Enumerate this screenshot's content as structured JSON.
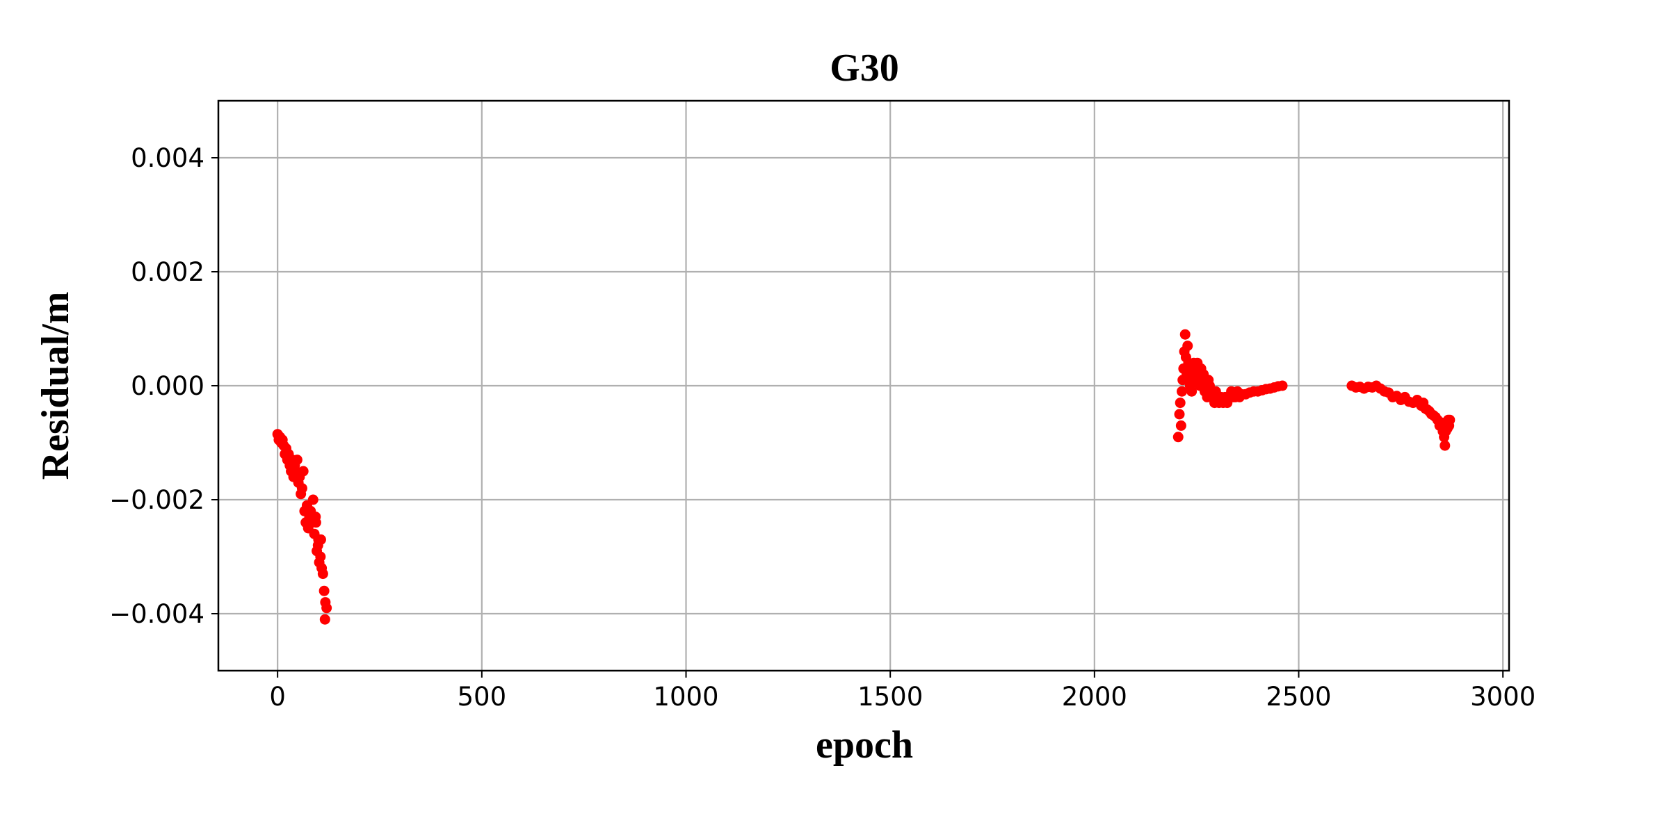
{
  "chart_data": {
    "type": "scatter",
    "title": "G30",
    "xlabel": "epoch",
    "ylabel": "Residual/m",
    "xlim": [
      -145,
      3015
    ],
    "ylim": [
      -0.005,
      0.005
    ],
    "xticks": [
      0,
      500,
      1000,
      1500,
      2000,
      2500,
      3000
    ],
    "xtick_labels": [
      "0",
      "500",
      "1000",
      "1500",
      "2000",
      "2500",
      "3000"
    ],
    "yticks": [
      0.004,
      0.002,
      0.0,
      -0.002,
      -0.004
    ],
    "ytick_labels": [
      "0.004",
      "0.002",
      "0.000",
      "−0.002",
      "−0.004"
    ],
    "grid": true,
    "marker_color": "#ff0000",
    "series": [
      {
        "points": [
          [
            0,
            -0.00085
          ],
          [
            3,
            -0.00095
          ],
          [
            6,
            -0.0009
          ],
          [
            9,
            -0.001
          ],
          [
            12,
            -0.00095
          ],
          [
            15,
            -0.00105
          ],
          [
            18,
            -0.0012
          ],
          [
            21,
            -0.0011
          ],
          [
            24,
            -0.0013
          ],
          [
            27,
            -0.0012
          ],
          [
            30,
            -0.0014
          ],
          [
            33,
            -0.0015
          ],
          [
            36,
            -0.0013
          ],
          [
            39,
            -0.0016
          ],
          [
            42,
            -0.0014
          ],
          [
            45,
            -0.0015
          ],
          [
            48,
            -0.0013
          ],
          [
            51,
            -0.0017
          ],
          [
            54,
            -0.0016
          ],
          [
            57,
            -0.0019
          ],
          [
            60,
            -0.0018
          ],
          [
            63,
            -0.0015
          ],
          [
            66,
            -0.0022
          ],
          [
            69,
            -0.0024
          ],
          [
            72,
            -0.0021
          ],
          [
            75,
            -0.0025
          ],
          [
            78,
            -0.0023
          ],
          [
            81,
            -0.0022
          ],
          [
            84,
            -0.0024
          ],
          [
            87,
            -0.002
          ],
          [
            90,
            -0.0026
          ],
          [
            93,
            -0.0023
          ],
          [
            96,
            -0.0029
          ],
          [
            99,
            -0.0028
          ],
          [
            102,
            -0.0031
          ],
          [
            105,
            -0.003
          ],
          [
            108,
            -0.0032
          ],
          [
            111,
            -0.0033
          ],
          [
            114,
            -0.0036
          ],
          [
            117,
            -0.0038
          ],
          [
            120,
            -0.0039
          ],
          [
            116,
            -0.0041
          ],
          [
            106,
            -0.0027
          ],
          [
            100,
            -0.0027
          ],
          [
            94,
            -0.0024
          ]
        ]
      },
      {
        "points": [
          [
            2205,
            -0.0009
          ],
          [
            2208,
            -0.0005
          ],
          [
            2210,
            -0.0003
          ],
          [
            2212,
            -0.0007
          ],
          [
            2214,
            -0.0001
          ],
          [
            2216,
            0.0001
          ],
          [
            2218,
            0.0003
          ],
          [
            2220,
            0.0006
          ],
          [
            2222,
            0.0009
          ],
          [
            2224,
            0.0005
          ],
          [
            2226,
            0.0002
          ],
          [
            2228,
            0.0007
          ],
          [
            2230,
            0.0004
          ],
          [
            2232,
            0.0001
          ],
          [
            2234,
            0.0
          ],
          [
            2236,
            0.0003
          ],
          [
            2238,
            -0.0001
          ],
          [
            2240,
            0.0002
          ],
          [
            2243,
            0.0004
          ],
          [
            2246,
            0.0001
          ],
          [
            2249,
            0.0003
          ],
          [
            2252,
            0.0004
          ],
          [
            2255,
            0.0002
          ],
          [
            2258,
            0.0
          ],
          [
            2261,
            0.0003
          ],
          [
            2264,
            0.0001
          ],
          [
            2267,
            0.0002
          ],
          [
            2270,
            -0.0001
          ],
          [
            2273,
            0.0
          ],
          [
            2276,
            -0.0002
          ],
          [
            2279,
            0.0001
          ],
          [
            2282,
            0.0
          ],
          [
            2285,
            -0.0001
          ],
          [
            2288,
            -0.0002
          ],
          [
            2291,
            -0.0001
          ],
          [
            2294,
            -0.0003
          ],
          [
            2297,
            -0.0001
          ],
          [
            2300,
            -0.0002
          ],
          [
            2305,
            -0.0003
          ],
          [
            2310,
            -0.0002
          ],
          [
            2315,
            -0.0003
          ],
          [
            2320,
            -0.0002
          ],
          [
            2325,
            -0.0003
          ],
          [
            2330,
            -0.0002
          ],
          [
            2335,
            -0.0001
          ],
          [
            2340,
            -0.0002
          ],
          [
            2345,
            -0.0002
          ],
          [
            2350,
            -0.0001
          ],
          [
            2355,
            -0.0002
          ],
          [
            2360,
            -0.00015
          ],
          [
            2370,
            -0.00015
          ],
          [
            2380,
            -0.00012
          ],
          [
            2390,
            -0.0001
          ],
          [
            2400,
            -0.0001
          ],
          [
            2410,
            -8e-05
          ],
          [
            2420,
            -6e-05
          ],
          [
            2430,
            -5e-05
          ],
          [
            2440,
            -3e-05
          ],
          [
            2450,
            -1e-05
          ],
          [
            2460,
            0.0
          ]
        ]
      },
      {
        "points": [
          [
            2630,
            0.0
          ],
          [
            2640,
            -3e-05
          ],
          [
            2650,
            -2e-05
          ],
          [
            2660,
            -5e-05
          ],
          [
            2670,
            -2e-05
          ],
          [
            2680,
            -3e-05
          ],
          [
            2690,
            0.0
          ],
          [
            2700,
            -5e-05
          ],
          [
            2710,
            -0.0001
          ],
          [
            2720,
            -0.00012
          ],
          [
            2730,
            -0.0002
          ],
          [
            2740,
            -0.00018
          ],
          [
            2750,
            -0.00025
          ],
          [
            2760,
            -0.0002
          ],
          [
            2770,
            -0.00028
          ],
          [
            2780,
            -0.0003
          ],
          [
            2790,
            -0.00025
          ],
          [
            2800,
            -0.00035
          ],
          [
            2805,
            -0.0003
          ],
          [
            2810,
            -0.0004
          ],
          [
            2815,
            -0.00042
          ],
          [
            2820,
            -0.00045
          ],
          [
            2825,
            -0.0005
          ],
          [
            2830,
            -0.00052
          ],
          [
            2835,
            -0.00055
          ],
          [
            2840,
            -0.0006
          ],
          [
            2845,
            -0.0007
          ],
          [
            2850,
            -0.00065
          ],
          [
            2853,
            -0.0008
          ],
          [
            2856,
            -0.0009
          ],
          [
            2858,
            -0.00105
          ],
          [
            2860,
            -0.0008
          ],
          [
            2862,
            -0.0007
          ],
          [
            2864,
            -0.00075
          ],
          [
            2866,
            -0.0006
          ],
          [
            2868,
            -0.0007
          ],
          [
            2870,
            -0.0006
          ]
        ]
      }
    ]
  }
}
